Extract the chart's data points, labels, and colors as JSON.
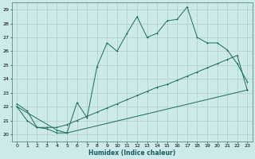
{
  "title": "",
  "xlabel": "Humidex (Indice chaleur)",
  "bg_color": "#cceaea",
  "grid_color": "#b0cccc",
  "line_color": "#1a6b5a",
  "xlim": [
    -0.5,
    23.5
  ],
  "ylim": [
    19.5,
    29.5
  ],
  "xticks": [
    0,
    1,
    2,
    3,
    4,
    5,
    6,
    7,
    8,
    9,
    10,
    11,
    12,
    13,
    14,
    15,
    16,
    17,
    18,
    19,
    20,
    21,
    22,
    23
  ],
  "yticks": [
    20,
    21,
    22,
    23,
    24,
    25,
    26,
    27,
    28,
    29
  ],
  "series1_x": [
    0,
    1,
    2,
    3,
    4,
    5,
    6,
    7,
    8,
    9,
    10,
    11,
    12,
    13,
    14,
    15,
    16,
    17,
    18,
    19,
    20,
    21,
    22,
    23
  ],
  "series1_y": [
    22.2,
    21.7,
    20.5,
    20.4,
    20.1,
    20.1,
    22.3,
    21.2,
    24.9,
    26.6,
    26.0,
    27.3,
    28.5,
    27.0,
    27.3,
    28.2,
    28.3,
    29.2,
    27.0,
    26.6,
    26.6,
    26.1,
    25.1,
    23.8
  ],
  "series2_x": [
    0,
    1,
    2,
    3,
    4,
    5,
    6,
    7,
    8,
    9,
    10,
    11,
    12,
    13,
    14,
    15,
    16,
    17,
    18,
    19,
    20,
    21,
    22,
    23
  ],
  "series2_y": [
    22.0,
    21.0,
    20.5,
    20.5,
    20.5,
    20.7,
    21.0,
    21.3,
    21.6,
    21.9,
    22.2,
    22.5,
    22.8,
    23.1,
    23.4,
    23.6,
    23.9,
    24.2,
    24.5,
    24.8,
    25.1,
    25.4,
    25.7,
    23.2
  ],
  "series3_x": [
    0,
    4,
    5,
    23
  ],
  "series3_y": [
    22.0,
    20.3,
    20.1,
    23.2
  ]
}
